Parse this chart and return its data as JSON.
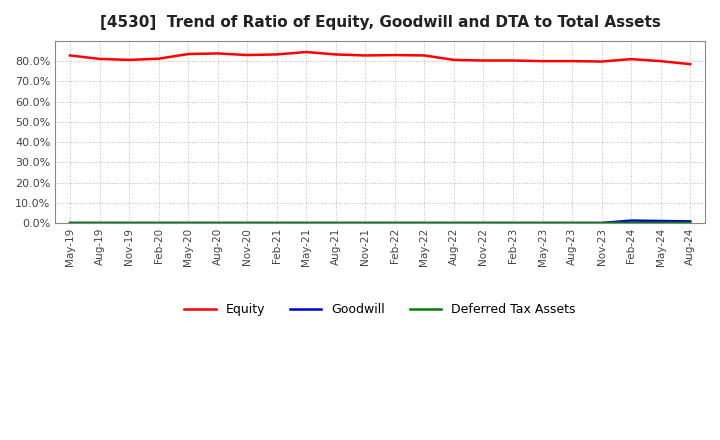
{
  "title": "[4530]  Trend of Ratio of Equity, Goodwill and DTA to Total Assets",
  "title_fontsize": 11,
  "background_color": "#ffffff",
  "plot_bg_color": "#ffffff",
  "grid_color": "#bbbbbb",
  "x_labels": [
    "May-19",
    "Aug-19",
    "Nov-19",
    "Feb-20",
    "May-20",
    "Aug-20",
    "Nov-20",
    "Feb-21",
    "May-21",
    "Aug-21",
    "Nov-21",
    "Feb-22",
    "May-22",
    "Aug-22",
    "Nov-22",
    "Feb-23",
    "May-23",
    "Aug-23",
    "Nov-23",
    "Feb-24",
    "May-24",
    "Aug-24"
  ],
  "equity": [
    0.828,
    0.811,
    0.806,
    0.812,
    0.835,
    0.838,
    0.83,
    0.833,
    0.845,
    0.833,
    0.828,
    0.83,
    0.828,
    0.806,
    0.803,
    0.803,
    0.8,
    0.8,
    0.798,
    0.81,
    0.8,
    0.785
  ],
  "goodwill": [
    0.0,
    0.0,
    0.0,
    0.0,
    0.0,
    0.0,
    0.0,
    0.0,
    0.0,
    0.0,
    0.0,
    0.0,
    0.0,
    0.0,
    0.0,
    0.0,
    0.0,
    0.0,
    0.0,
    0.012,
    0.01,
    0.008
  ],
  "dta": [
    0.0,
    0.0,
    0.0,
    0.0,
    0.0,
    0.0,
    0.0,
    0.0,
    0.0,
    0.0,
    0.0,
    0.0,
    0.0,
    0.0,
    0.0,
    0.0,
    0.0,
    0.0,
    0.0,
    0.001,
    0.001,
    0.001
  ],
  "equity_color": "#ff0000",
  "goodwill_color": "#0000cc",
  "dta_color": "#008000",
  "ylim": [
    0.0,
    0.9
  ],
  "yticks": [
    0.0,
    0.1,
    0.2,
    0.3,
    0.4,
    0.5,
    0.6,
    0.7,
    0.8
  ],
  "legend_equity": "Equity",
  "legend_goodwill": "Goodwill",
  "legend_dta": "Deferred Tax Assets",
  "linewidth": 1.8
}
